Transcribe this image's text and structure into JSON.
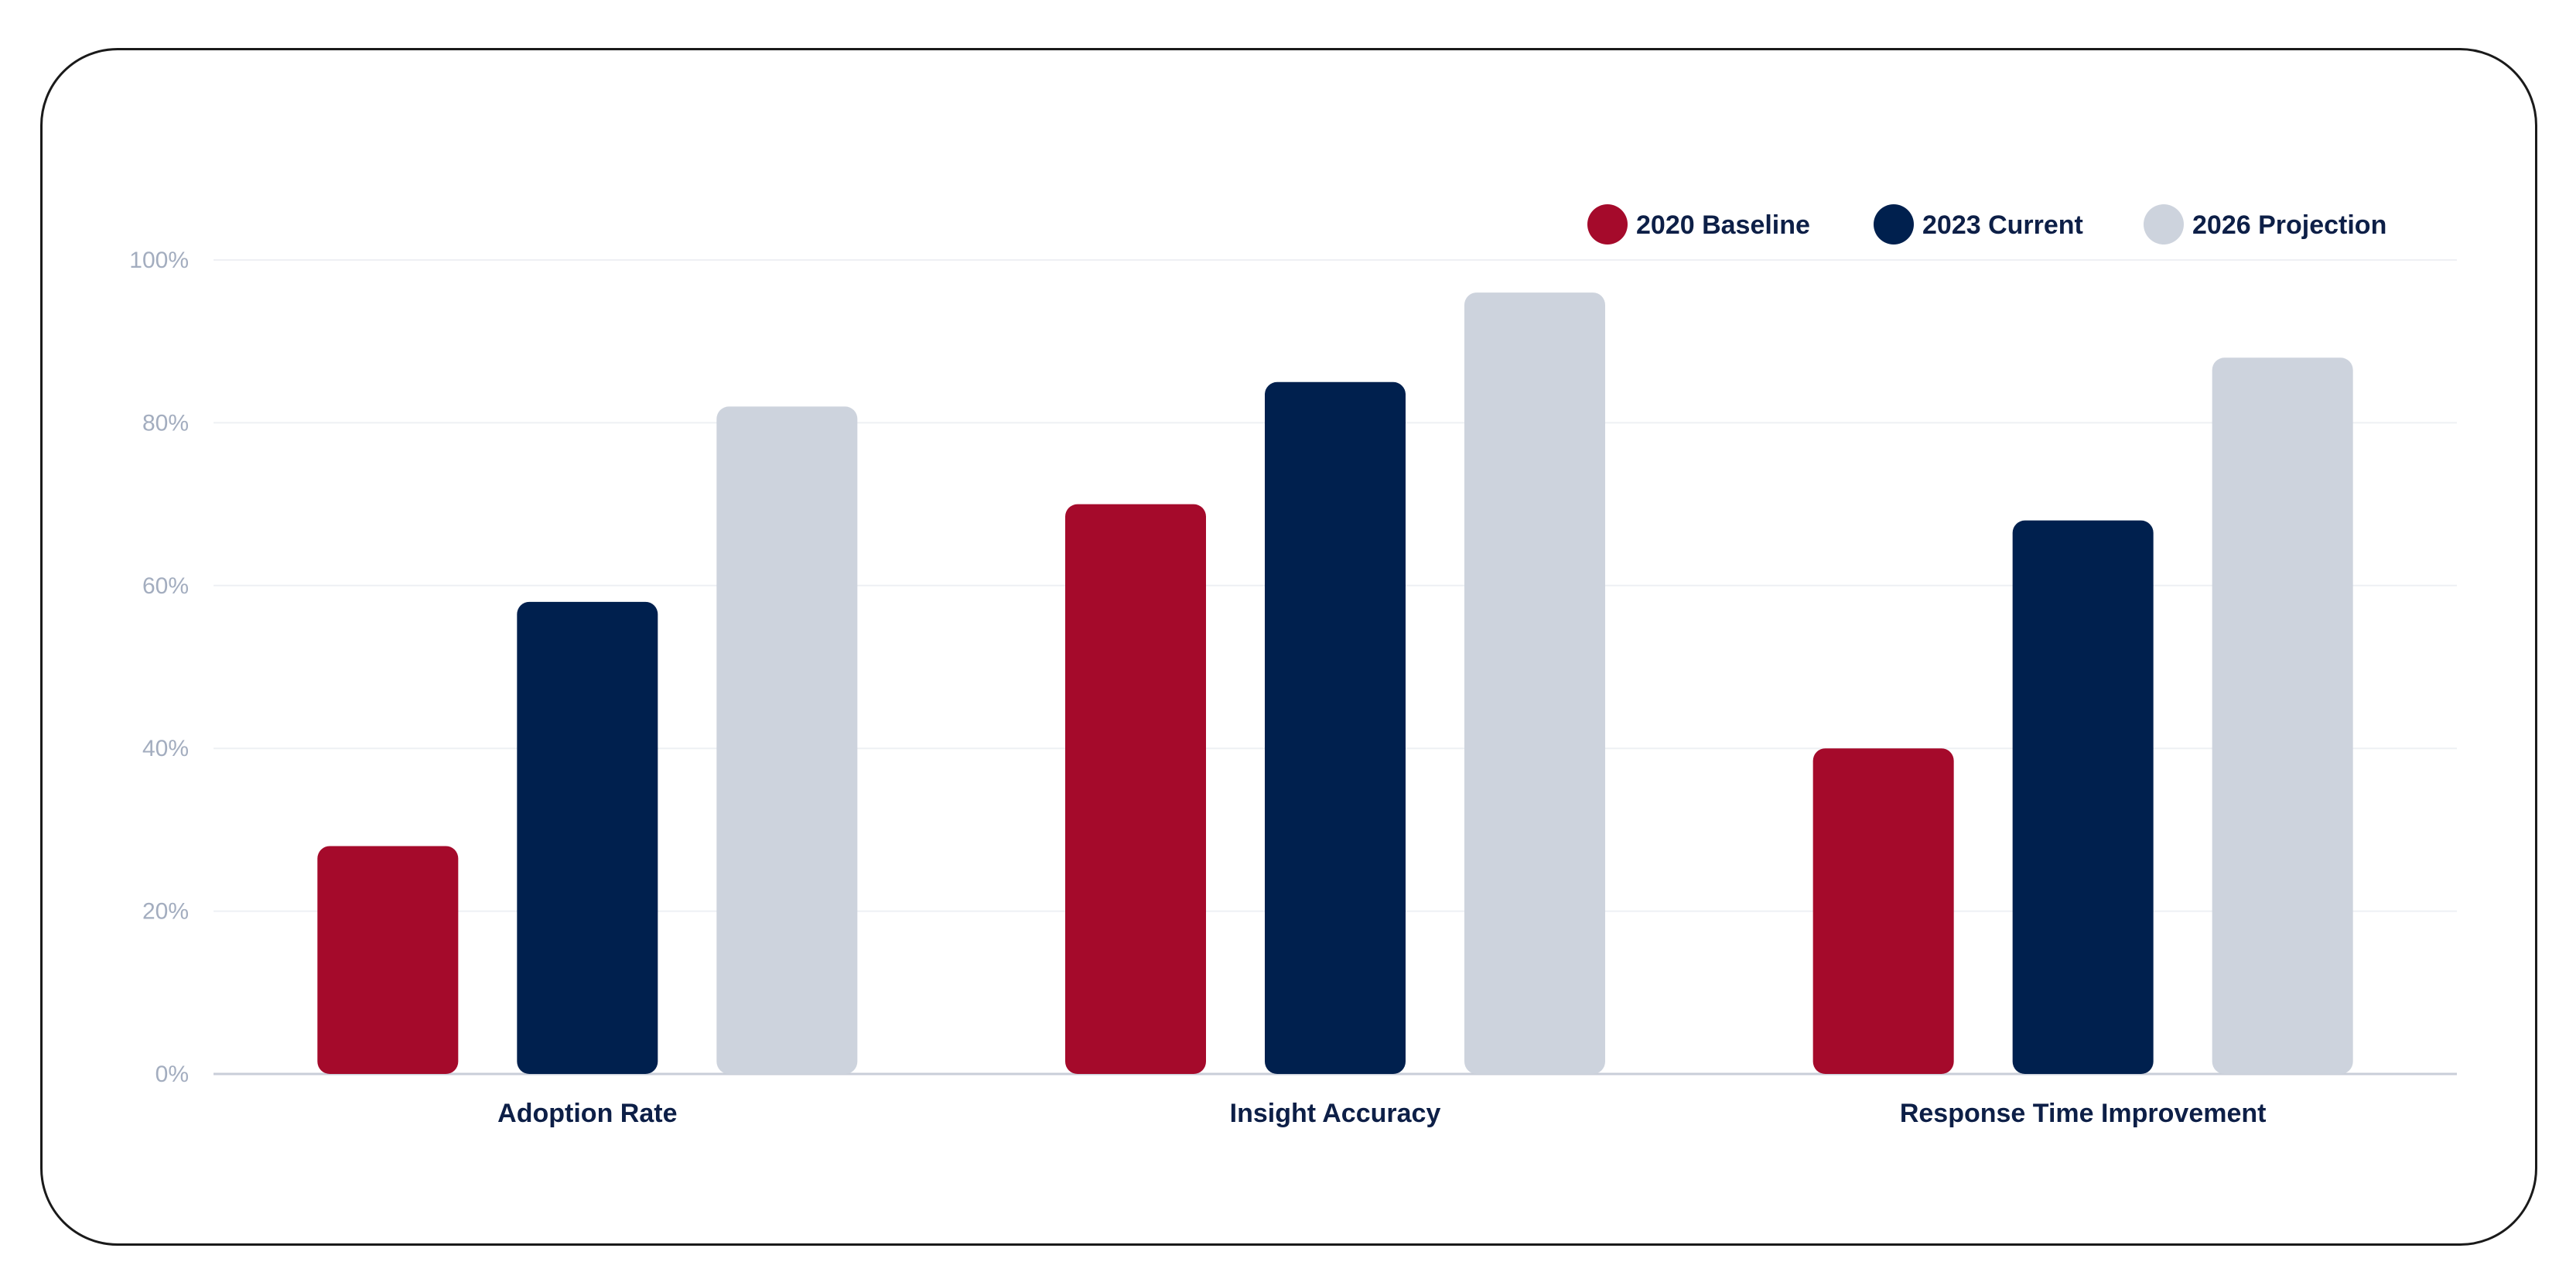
{
  "chart_data": {
    "type": "bar",
    "title": "",
    "xlabel": "",
    "ylabel": "",
    "ylim": [
      0,
      100
    ],
    "y_ticks": [
      "0%",
      "20%",
      "40%",
      "60%",
      "80%",
      "100%"
    ],
    "grid": true,
    "legend_position": "top-right",
    "categories": [
      "Adoption Rate",
      "Insight Accuracy",
      "Response Time Improvement"
    ],
    "series": [
      {
        "name": "2020 Baseline",
        "color": "#a50a2b",
        "values": [
          28,
          70,
          40
        ]
      },
      {
        "name": "2023 Current",
        "color": "#00204e",
        "values": [
          58,
          85,
          68
        ]
      },
      {
        "name": "2026 Projection",
        "color": "#cdd3dd",
        "values": [
          82,
          96,
          88
        ]
      }
    ]
  }
}
